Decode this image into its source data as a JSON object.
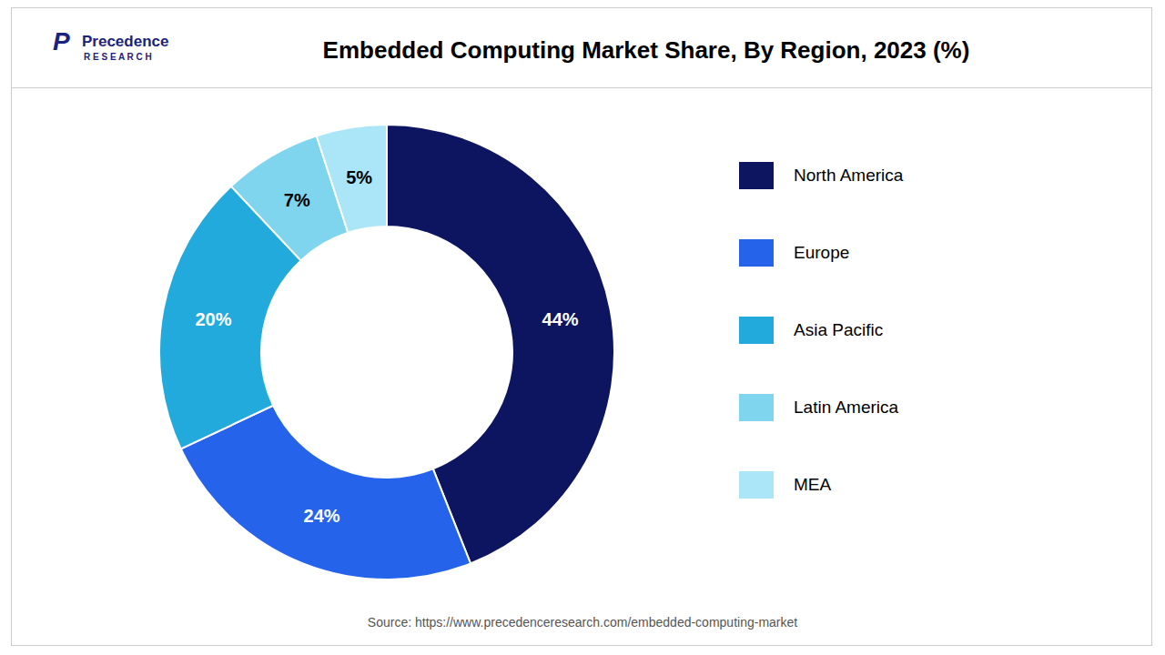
{
  "chart_data": {
    "type": "pie",
    "title": "Embedded Computing Market Share, By Region, 2023 (%)",
    "categories": [
      "North America",
      "Europe",
      "Asia Pacific",
      "Latin America",
      "MEA"
    ],
    "values": [
      44,
      24,
      20,
      7,
      5
    ],
    "value_labels": [
      "44%",
      "24%",
      "20%",
      "7%",
      "5%"
    ],
    "colors": [
      "#0d1560",
      "#2563eb",
      "#22aadd",
      "#7fd4ee",
      "#aae6f7"
    ],
    "data_labels": true,
    "legend": "right",
    "annotations": [
      "P",
      "Precedence",
      "R E S E A R C H"
    ],
    "source": "Source: https://www.precedenceresearch.com/embedded-computing-market"
  }
}
